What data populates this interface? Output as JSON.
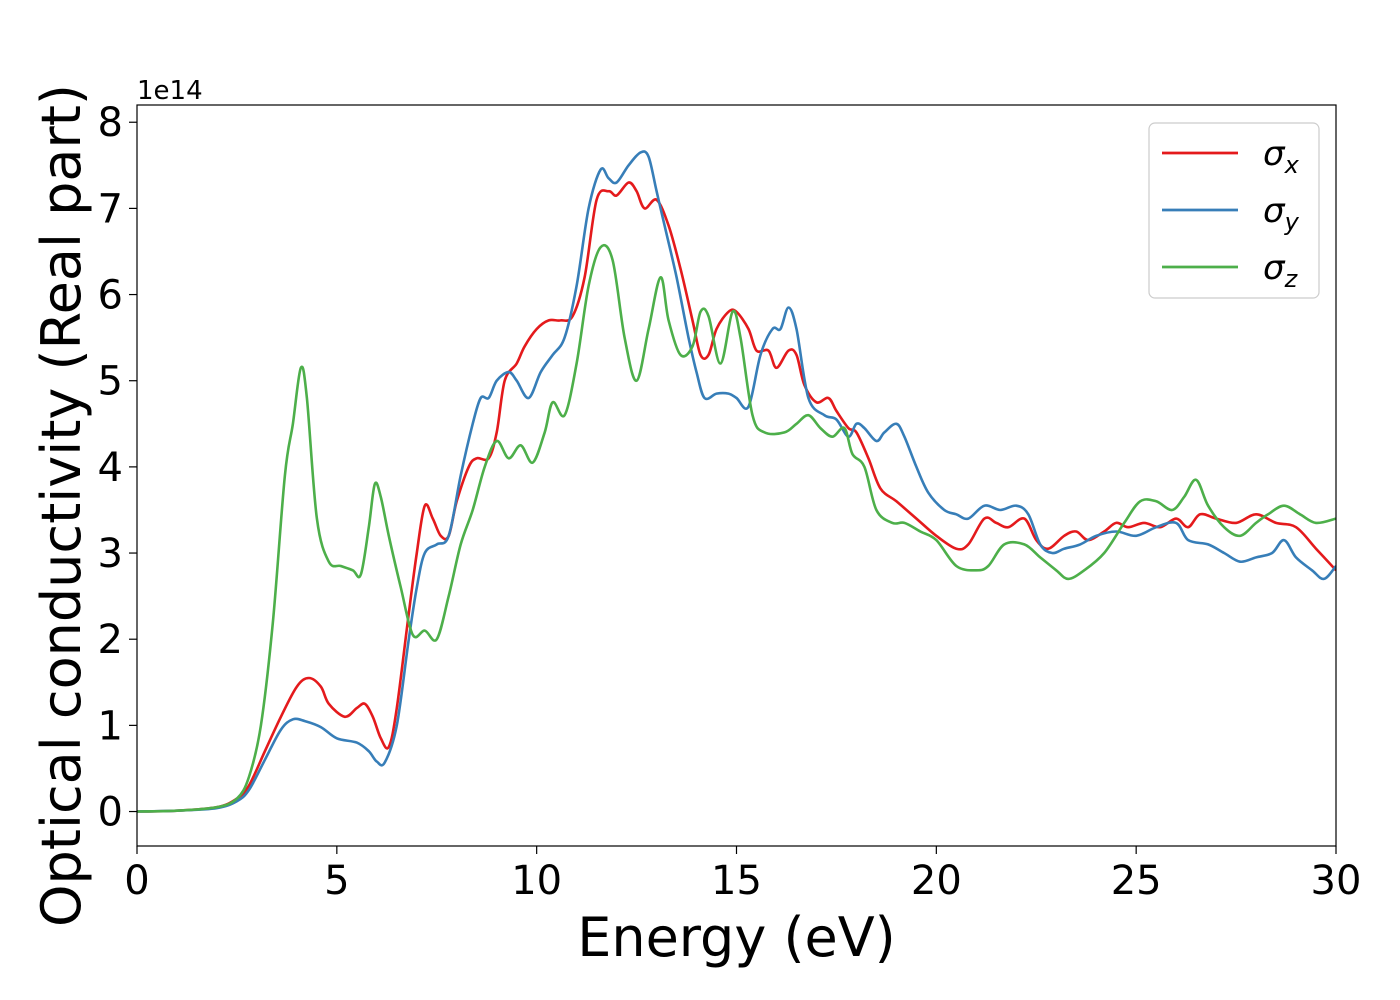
{
  "chart_data": {
    "type": "line",
    "xlabel": "Energy (eV)",
    "ylabel": "Optical conductivity (Real part)",
    "y_offset_label": "1e14",
    "xlim": [
      0,
      30
    ],
    "ylim": [
      -0.4,
      8.2
    ],
    "x_ticks": [
      0,
      5,
      10,
      15,
      20,
      25,
      30
    ],
    "y_ticks": [
      0,
      1,
      2,
      3,
      4,
      5,
      6,
      7,
      8
    ],
    "grid": false,
    "legend_position": "top-right",
    "series": [
      {
        "name": "σx",
        "symbol": "σ",
        "subscript": "x",
        "color": "#e41a1c",
        "points": [
          [
            0,
            0
          ],
          [
            1,
            0.01
          ],
          [
            2,
            0.05
          ],
          [
            2.5,
            0.15
          ],
          [
            2.8,
            0.3
          ],
          [
            3.2,
            0.7
          ],
          [
            3.6,
            1.1
          ],
          [
            4.0,
            1.45
          ],
          [
            4.3,
            1.55
          ],
          [
            4.6,
            1.45
          ],
          [
            4.8,
            1.25
          ],
          [
            5.2,
            1.1
          ],
          [
            5.5,
            1.2
          ],
          [
            5.7,
            1.25
          ],
          [
            5.9,
            1.1
          ],
          [
            6.1,
            0.85
          ],
          [
            6.3,
            0.75
          ],
          [
            6.5,
            1.2
          ],
          [
            6.8,
            2.3
          ],
          [
            7.0,
            3.0
          ],
          [
            7.2,
            3.55
          ],
          [
            7.4,
            3.4
          ],
          [
            7.6,
            3.2
          ],
          [
            7.8,
            3.2
          ],
          [
            8.0,
            3.6
          ],
          [
            8.3,
            4.0
          ],
          [
            8.5,
            4.1
          ],
          [
            8.8,
            4.1
          ],
          [
            9.0,
            4.4
          ],
          [
            9.2,
            5.0
          ],
          [
            9.5,
            5.2
          ],
          [
            9.7,
            5.4
          ],
          [
            10.0,
            5.6
          ],
          [
            10.3,
            5.7
          ],
          [
            10.6,
            5.7
          ],
          [
            10.9,
            5.75
          ],
          [
            11.2,
            6.2
          ],
          [
            11.5,
            7.1
          ],
          [
            11.8,
            7.2
          ],
          [
            12.0,
            7.15
          ],
          [
            12.3,
            7.3
          ],
          [
            12.5,
            7.2
          ],
          [
            12.7,
            7.0
          ],
          [
            13.0,
            7.1
          ],
          [
            13.3,
            6.8
          ],
          [
            13.6,
            6.3
          ],
          [
            13.9,
            5.7
          ],
          [
            14.1,
            5.3
          ],
          [
            14.3,
            5.3
          ],
          [
            14.5,
            5.6
          ],
          [
            14.8,
            5.8
          ],
          [
            15.0,
            5.8
          ],
          [
            15.3,
            5.6
          ],
          [
            15.5,
            5.35
          ],
          [
            15.8,
            5.35
          ],
          [
            16.0,
            5.15
          ],
          [
            16.3,
            5.35
          ],
          [
            16.5,
            5.3
          ],
          [
            16.7,
            4.95
          ],
          [
            17.0,
            4.75
          ],
          [
            17.3,
            4.8
          ],
          [
            17.5,
            4.65
          ],
          [
            17.8,
            4.45
          ],
          [
            18.0,
            4.4
          ],
          [
            18.3,
            4.1
          ],
          [
            18.6,
            3.75
          ],
          [
            19.0,
            3.6
          ],
          [
            19.5,
            3.4
          ],
          [
            20.0,
            3.2
          ],
          [
            20.5,
            3.05
          ],
          [
            20.8,
            3.1
          ],
          [
            21.2,
            3.4
          ],
          [
            21.5,
            3.35
          ],
          [
            21.8,
            3.3
          ],
          [
            22.2,
            3.4
          ],
          [
            22.5,
            3.15
          ],
          [
            22.8,
            3.05
          ],
          [
            23.2,
            3.2
          ],
          [
            23.5,
            3.25
          ],
          [
            23.8,
            3.15
          ],
          [
            24.2,
            3.25
          ],
          [
            24.5,
            3.35
          ],
          [
            24.8,
            3.3
          ],
          [
            25.2,
            3.35
          ],
          [
            25.6,
            3.3
          ],
          [
            26.0,
            3.4
          ],
          [
            26.3,
            3.3
          ],
          [
            26.6,
            3.45
          ],
          [
            27.0,
            3.4
          ],
          [
            27.5,
            3.35
          ],
          [
            28.0,
            3.45
          ],
          [
            28.5,
            3.35
          ],
          [
            29.0,
            3.3
          ],
          [
            29.5,
            3.05
          ],
          [
            30.0,
            2.8
          ]
        ]
      },
      {
        "name": "σy",
        "symbol": "σ",
        "subscript": "y",
        "color": "#377eb8",
        "points": [
          [
            0,
            0
          ],
          [
            1,
            0.01
          ],
          [
            2,
            0.04
          ],
          [
            2.5,
            0.12
          ],
          [
            2.8,
            0.25
          ],
          [
            3.2,
            0.6
          ],
          [
            3.6,
            0.95
          ],
          [
            3.9,
            1.07
          ],
          [
            4.2,
            1.05
          ],
          [
            4.6,
            0.98
          ],
          [
            5.0,
            0.85
          ],
          [
            5.5,
            0.8
          ],
          [
            5.8,
            0.7
          ],
          [
            6.0,
            0.58
          ],
          [
            6.2,
            0.57
          ],
          [
            6.5,
            1.0
          ],
          [
            6.8,
            2.0
          ],
          [
            7.0,
            2.6
          ],
          [
            7.2,
            3.0
          ],
          [
            7.5,
            3.1
          ],
          [
            7.8,
            3.2
          ],
          [
            8.1,
            3.9
          ],
          [
            8.4,
            4.5
          ],
          [
            8.6,
            4.8
          ],
          [
            8.8,
            4.8
          ],
          [
            9.0,
            5.0
          ],
          [
            9.3,
            5.1
          ],
          [
            9.5,
            5.0
          ],
          [
            9.8,
            4.8
          ],
          [
            10.1,
            5.1
          ],
          [
            10.4,
            5.3
          ],
          [
            10.7,
            5.5
          ],
          [
            11.0,
            6.1
          ],
          [
            11.3,
            7.0
          ],
          [
            11.6,
            7.45
          ],
          [
            11.8,
            7.35
          ],
          [
            12.0,
            7.3
          ],
          [
            12.3,
            7.5
          ],
          [
            12.6,
            7.65
          ],
          [
            12.8,
            7.6
          ],
          [
            13.0,
            7.2
          ],
          [
            13.2,
            6.8
          ],
          [
            13.5,
            6.2
          ],
          [
            13.8,
            5.5
          ],
          [
            14.0,
            5.1
          ],
          [
            14.2,
            4.8
          ],
          [
            14.5,
            4.85
          ],
          [
            14.8,
            4.85
          ],
          [
            15.0,
            4.8
          ],
          [
            15.3,
            4.7
          ],
          [
            15.6,
            5.3
          ],
          [
            15.9,
            5.6
          ],
          [
            16.1,
            5.6
          ],
          [
            16.3,
            5.85
          ],
          [
            16.5,
            5.6
          ],
          [
            16.8,
            4.8
          ],
          [
            17.2,
            4.6
          ],
          [
            17.5,
            4.55
          ],
          [
            17.8,
            4.35
          ],
          [
            18.0,
            4.5
          ],
          [
            18.2,
            4.45
          ],
          [
            18.5,
            4.3
          ],
          [
            18.7,
            4.4
          ],
          [
            19.0,
            4.5
          ],
          [
            19.2,
            4.35
          ],
          [
            19.5,
            4.0
          ],
          [
            19.8,
            3.7
          ],
          [
            20.2,
            3.5
          ],
          [
            20.5,
            3.45
          ],
          [
            20.8,
            3.4
          ],
          [
            21.2,
            3.55
          ],
          [
            21.6,
            3.5
          ],
          [
            22.0,
            3.55
          ],
          [
            22.3,
            3.45
          ],
          [
            22.6,
            3.1
          ],
          [
            22.9,
            3.0
          ],
          [
            23.2,
            3.05
          ],
          [
            23.6,
            3.1
          ],
          [
            24.0,
            3.2
          ],
          [
            24.5,
            3.25
          ],
          [
            25.0,
            3.2
          ],
          [
            25.5,
            3.3
          ],
          [
            26.0,
            3.35
          ],
          [
            26.3,
            3.15
          ],
          [
            26.8,
            3.1
          ],
          [
            27.2,
            3.0
          ],
          [
            27.6,
            2.9
          ],
          [
            28.0,
            2.95
          ],
          [
            28.4,
            3.0
          ],
          [
            28.7,
            3.15
          ],
          [
            29.0,
            2.95
          ],
          [
            29.4,
            2.8
          ],
          [
            29.7,
            2.7
          ],
          [
            30.0,
            2.85
          ]
        ]
      },
      {
        "name": "σz",
        "symbol": "σ",
        "subscript": "z",
        "color": "#4daf4a",
        "points": [
          [
            0,
            0
          ],
          [
            1,
            0.01
          ],
          [
            2,
            0.05
          ],
          [
            2.5,
            0.15
          ],
          [
            2.8,
            0.4
          ],
          [
            3.1,
            1.0
          ],
          [
            3.4,
            2.2
          ],
          [
            3.7,
            3.9
          ],
          [
            3.9,
            4.5
          ],
          [
            4.1,
            5.15
          ],
          [
            4.25,
            4.8
          ],
          [
            4.5,
            3.4
          ],
          [
            4.8,
            2.9
          ],
          [
            5.1,
            2.85
          ],
          [
            5.4,
            2.8
          ],
          [
            5.6,
            2.75
          ],
          [
            5.8,
            3.3
          ],
          [
            5.95,
            3.8
          ],
          [
            6.1,
            3.65
          ],
          [
            6.3,
            3.2
          ],
          [
            6.6,
            2.6
          ],
          [
            6.9,
            2.05
          ],
          [
            7.2,
            2.1
          ],
          [
            7.5,
            2.0
          ],
          [
            7.8,
            2.5
          ],
          [
            8.1,
            3.1
          ],
          [
            8.4,
            3.5
          ],
          [
            8.7,
            4.0
          ],
          [
            9.0,
            4.3
          ],
          [
            9.3,
            4.1
          ],
          [
            9.6,
            4.25
          ],
          [
            9.9,
            4.05
          ],
          [
            10.2,
            4.4
          ],
          [
            10.4,
            4.75
          ],
          [
            10.7,
            4.6
          ],
          [
            11.0,
            5.2
          ],
          [
            11.3,
            6.1
          ],
          [
            11.6,
            6.55
          ],
          [
            11.9,
            6.4
          ],
          [
            12.2,
            5.5
          ],
          [
            12.5,
            5.0
          ],
          [
            12.8,
            5.6
          ],
          [
            13.1,
            6.2
          ],
          [
            13.3,
            5.7
          ],
          [
            13.6,
            5.3
          ],
          [
            13.9,
            5.4
          ],
          [
            14.1,
            5.8
          ],
          [
            14.3,
            5.75
          ],
          [
            14.6,
            5.2
          ],
          [
            14.9,
            5.8
          ],
          [
            15.1,
            5.5
          ],
          [
            15.4,
            4.6
          ],
          [
            15.7,
            4.4
          ],
          [
            16.2,
            4.4
          ],
          [
            16.5,
            4.5
          ],
          [
            16.8,
            4.6
          ],
          [
            17.1,
            4.45
          ],
          [
            17.4,
            4.35
          ],
          [
            17.7,
            4.45
          ],
          [
            17.9,
            4.15
          ],
          [
            18.2,
            4.0
          ],
          [
            18.5,
            3.5
          ],
          [
            18.9,
            3.35
          ],
          [
            19.2,
            3.35
          ],
          [
            19.6,
            3.25
          ],
          [
            20.0,
            3.15
          ],
          [
            20.5,
            2.85
          ],
          [
            21.0,
            2.8
          ],
          [
            21.3,
            2.85
          ],
          [
            21.7,
            3.1
          ],
          [
            22.2,
            3.1
          ],
          [
            22.6,
            2.95
          ],
          [
            23.0,
            2.8
          ],
          [
            23.3,
            2.7
          ],
          [
            23.7,
            2.8
          ],
          [
            24.2,
            3.0
          ],
          [
            24.7,
            3.35
          ],
          [
            25.1,
            3.6
          ],
          [
            25.5,
            3.6
          ],
          [
            25.9,
            3.5
          ],
          [
            26.2,
            3.65
          ],
          [
            26.5,
            3.85
          ],
          [
            26.8,
            3.55
          ],
          [
            27.2,
            3.3
          ],
          [
            27.6,
            3.2
          ],
          [
            28.0,
            3.35
          ],
          [
            28.3,
            3.45
          ],
          [
            28.7,
            3.55
          ],
          [
            29.1,
            3.45
          ],
          [
            29.5,
            3.35
          ],
          [
            30.0,
            3.4
          ]
        ]
      }
    ]
  }
}
